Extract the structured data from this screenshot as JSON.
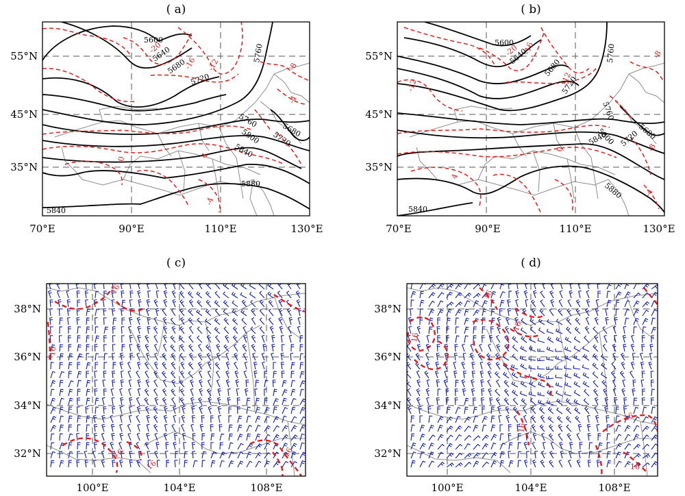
{
  "panels": [
    {
      "id": "a",
      "title": "( a)",
      "lon_ticks": [
        "70°E",
        "90°E",
        "110°E",
        "130°E"
      ],
      "lat_ticks": [
        "55°N",
        "45°N",
        "35°N"
      ],
      "height_labels": [
        "5600",
        "5640",
        "5680",
        "5720",
        "5760",
        "5760",
        "5680",
        "5720",
        "5800",
        "5840",
        "5880",
        "5840"
      ],
      "temp_labels": [
        "-20",
        "-16",
        "-12",
        "-8",
        "-4",
        "0",
        "4",
        "-4"
      ]
    },
    {
      "id": "b",
      "title": "( b)",
      "lon_ticks": [
        "70°E",
        "90°E",
        "110°E",
        "130°E"
      ],
      "lat_ticks": [
        "55°N",
        "45°N",
        "35°N"
      ],
      "height_labels": [
        "5600",
        "5640",
        "5680",
        "5720",
        "5760",
        "5760",
        "5800",
        "5840",
        "5680",
        "5720",
        "5880",
        "5840"
      ],
      "temp_labels": [
        "-20",
        "-16",
        "-12",
        "-8",
        "-12",
        "0",
        "4",
        "-4",
        "-8"
      ]
    },
    {
      "id": "c",
      "title": "( c)",
      "lon_ticks": [
        "100°E",
        "104°E",
        "108°E"
      ],
      "lat_ticks": [
        "38°N",
        "36°N",
        "34°N",
        "32°N"
      ],
      "speed_labels": [
        "16",
        "16",
        "16",
        "16",
        "16"
      ]
    },
    {
      "id": "d",
      "title": "( d)",
      "lon_ticks": [
        "100°E",
        "104°E",
        "108°E"
      ],
      "lat_ticks": [
        "38°N",
        "36°N",
        "34°N",
        "32°N"
      ],
      "speed_labels": [
        "16",
        "16",
        "16",
        "16",
        "16",
        "16"
      ]
    }
  ],
  "colors": {
    "height_contour": "#000000",
    "temperature_contour": "#e8191a",
    "wind_barb": "#0a1ab4",
    "boundary": "#8c8c8c",
    "grid": "#555555"
  }
}
